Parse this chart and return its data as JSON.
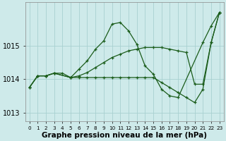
{
  "title": "Graphe pression niveau de la mer (hPa)",
  "background_color": "#ceeaea",
  "grid_color": "#a8d0d0",
  "line_color": "#1a5c1a",
  "xlim": [
    -0.5,
    23.5
  ],
  "ylim": [
    1012.75,
    1016.3
  ],
  "yticks": [
    1013,
    1014,
    1015
  ],
  "xticks": [
    0,
    1,
    2,
    3,
    4,
    5,
    6,
    7,
    8,
    9,
    10,
    11,
    12,
    13,
    14,
    15,
    16,
    17,
    18,
    19,
    20,
    21,
    22,
    23
  ],
  "series1": {
    "x": [
      0,
      1,
      2,
      3,
      4,
      5,
      6,
      7,
      8,
      9,
      10,
      11,
      12,
      13,
      14,
      15,
      16,
      17,
      18,
      21,
      22,
      23
    ],
    "y": [
      1013.75,
      1014.1,
      1014.1,
      1014.18,
      1014.18,
      1014.05,
      1014.3,
      1014.55,
      1014.9,
      1015.15,
      1015.65,
      1015.7,
      1015.45,
      1015.05,
      1014.4,
      1014.15,
      1013.7,
      1013.5,
      1013.45,
      1015.1,
      1015.6,
      1016.0
    ]
  },
  "series2": {
    "x": [
      0,
      1,
      2,
      3,
      5,
      6,
      7,
      8,
      9,
      10,
      11,
      12,
      13,
      14,
      15,
      16,
      17,
      18,
      19,
      20,
      21,
      22,
      23
    ],
    "y": [
      1013.75,
      1014.1,
      1014.1,
      1014.18,
      1014.05,
      1014.1,
      1014.2,
      1014.35,
      1014.5,
      1014.65,
      1014.75,
      1014.85,
      1014.9,
      1014.95,
      1014.95,
      1014.95,
      1014.9,
      1014.85,
      1014.8,
      1013.85,
      1013.85,
      1015.1,
      1016.0
    ]
  },
  "series3": {
    "x": [
      0,
      1,
      2,
      3,
      5,
      6,
      7,
      8,
      9,
      10,
      11,
      12,
      13,
      14,
      15,
      16,
      17,
      18,
      19,
      20,
      21,
      22,
      23
    ],
    "y": [
      1013.75,
      1014.1,
      1014.1,
      1014.18,
      1014.05,
      1014.05,
      1014.05,
      1014.05,
      1014.05,
      1014.05,
      1014.05,
      1014.05,
      1014.05,
      1014.05,
      1014.05,
      1013.9,
      1013.75,
      1013.6,
      1013.45,
      1013.3,
      1013.7,
      1015.1,
      1016.0
    ]
  },
  "tick_fontsize": 7,
  "xlabel_fontsize": 7.5
}
